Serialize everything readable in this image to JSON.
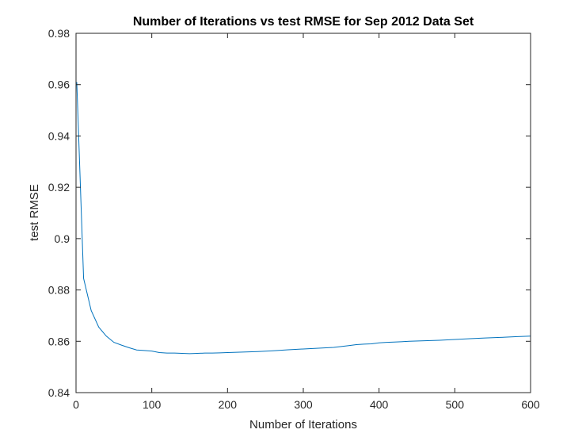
{
  "chart_data": {
    "type": "line",
    "title": "Number of Iterations vs test RMSE for Sep 2012 Data Set",
    "xlabel": "Number of Iterations",
    "ylabel": "test RMSE",
    "xlim": [
      0,
      600
    ],
    "ylim": [
      0.84,
      0.98
    ],
    "xticks": [
      0,
      100,
      200,
      300,
      400,
      500,
      600
    ],
    "yticks": [
      0.84,
      0.86,
      0.88,
      0.9,
      0.92,
      0.94,
      0.96,
      0.98
    ],
    "xtick_labels": [
      "0",
      "100",
      "200",
      "300",
      "400",
      "500",
      "600"
    ],
    "ytick_labels": [
      "0.84",
      "0.86",
      "0.88",
      "0.9",
      "0.92",
      "0.94",
      "0.96",
      "0.98"
    ],
    "grid": false,
    "line_color": "#0072BD",
    "axis_color": "#262626",
    "series": [
      {
        "x": [
          1,
          10,
          20,
          30,
          40,
          50,
          60,
          70,
          80,
          90,
          100,
          110,
          120,
          130,
          140,
          150,
          160,
          170,
          180,
          190,
          200,
          220,
          240,
          260,
          280,
          300,
          320,
          340,
          360,
          370,
          380,
          390,
          400,
          410,
          420,
          440,
          460,
          480,
          500,
          520,
          540,
          560,
          580,
          600
        ],
        "y": [
          0.961,
          0.8845,
          0.872,
          0.8655,
          0.862,
          0.8596,
          0.8585,
          0.8575,
          0.8566,
          0.8564,
          0.8562,
          0.8556,
          0.8554,
          0.8554,
          0.8553,
          0.8552,
          0.8553,
          0.8554,
          0.8554,
          0.8555,
          0.8556,
          0.8558,
          0.856,
          0.8563,
          0.8567,
          0.857,
          0.8573,
          0.8576,
          0.8583,
          0.8587,
          0.8589,
          0.859,
          0.8594,
          0.8596,
          0.8597,
          0.86,
          0.8602,
          0.8604,
          0.8607,
          0.861,
          0.8613,
          0.8615,
          0.8618,
          0.862
        ]
      }
    ]
  }
}
